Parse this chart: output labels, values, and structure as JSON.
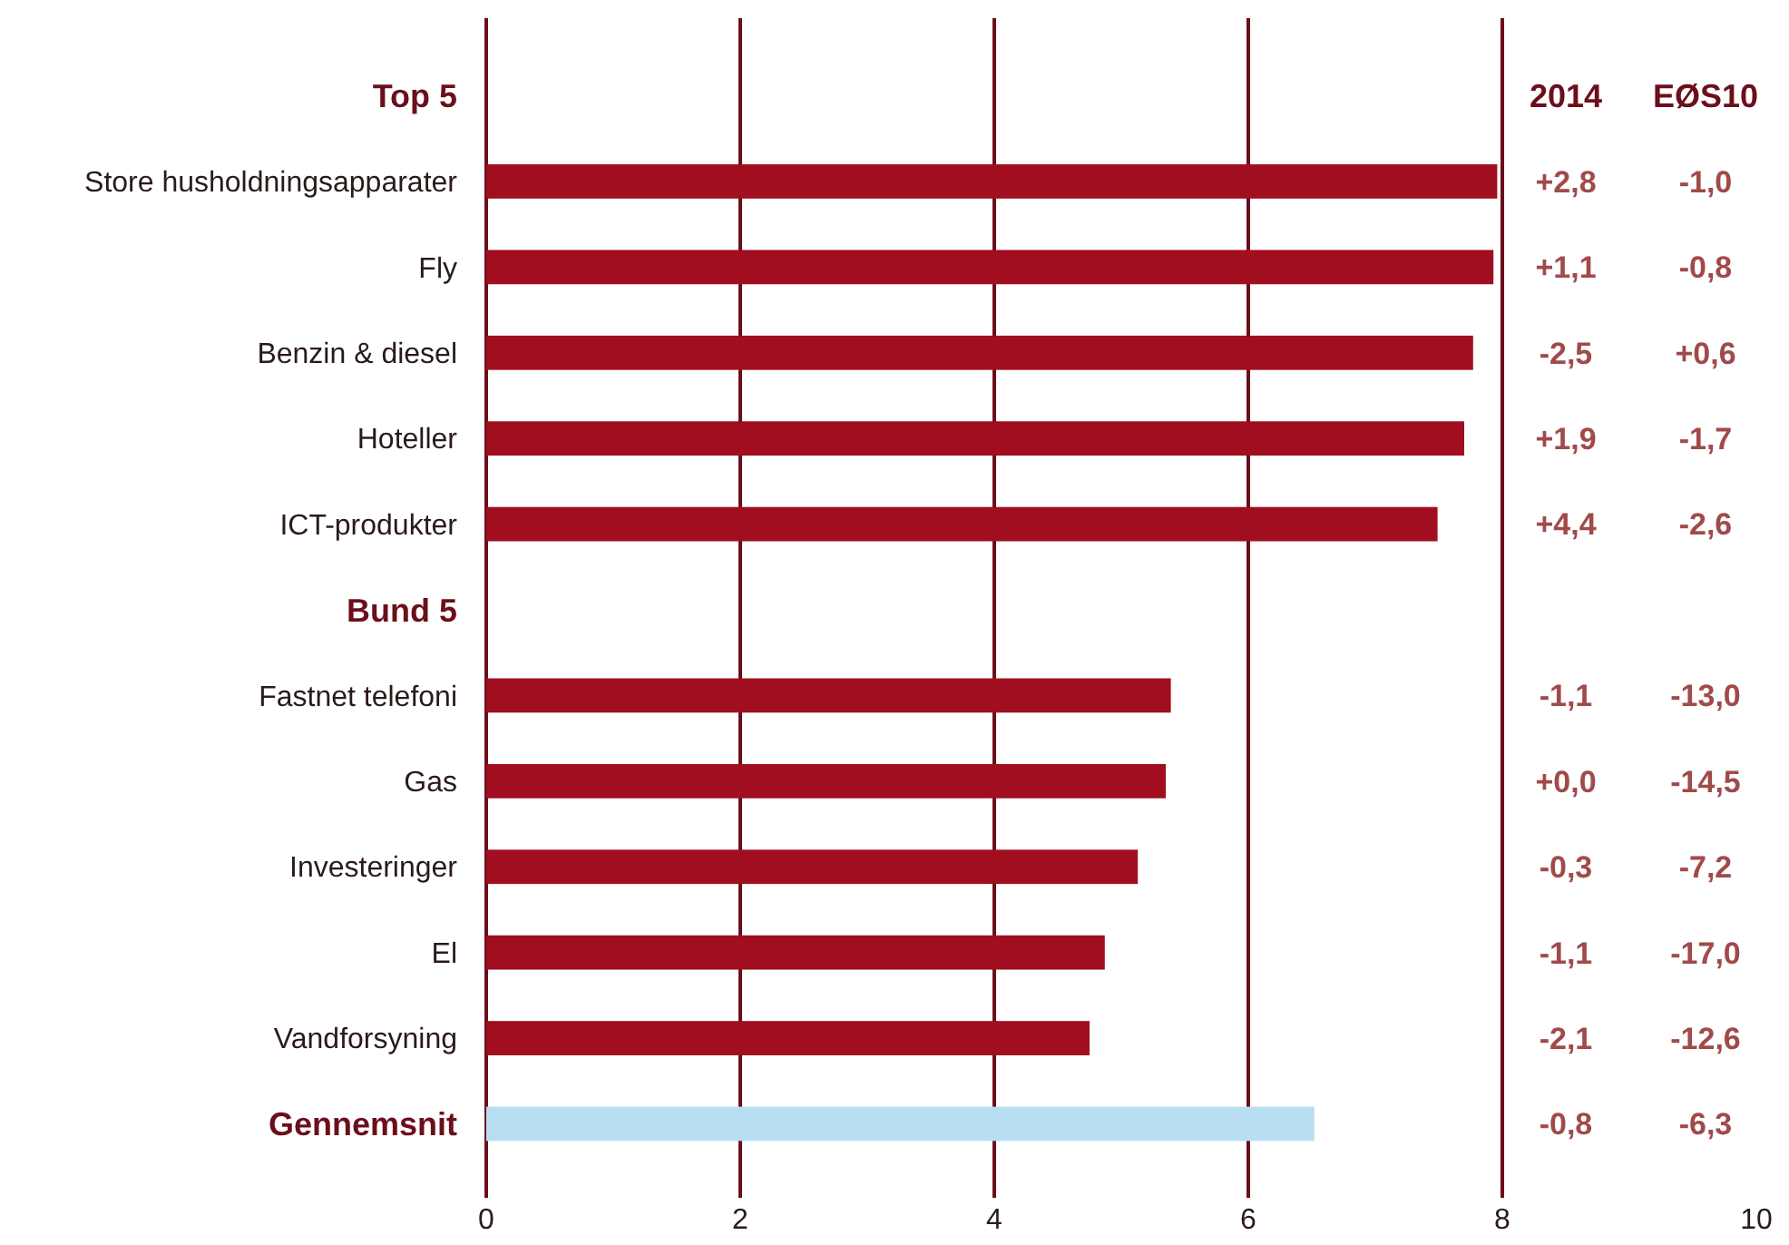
{
  "chart_data": {
    "type": "bar",
    "orientation": "horizontal",
    "categories": [
      "Top 5",
      "Store husholdningsapparater",
      "Fly",
      "Benzin & diesel",
      "Hoteller",
      "ICT-produkter",
      "Bund 5",
      "Fastnet telefoni",
      "Gas",
      "Investeringer",
      "El",
      "Vandforsyning",
      "Gennemsnit"
    ],
    "values": [
      null,
      7.96,
      7.93,
      7.77,
      7.7,
      7.49,
      null,
      5.39,
      5.35,
      5.13,
      4.87,
      4.75,
      6.52
    ],
    "colors": [
      null,
      "#a00e1f",
      "#a00e1f",
      "#a00e1f",
      "#a00e1f",
      "#a00e1f",
      null,
      "#a00e1f",
      "#a00e1f",
      "#a00e1f",
      "#a00e1f",
      "#a00e1f",
      "#b8def2"
    ],
    "xlim": [
      0,
      10
    ],
    "xticks": [
      0,
      2,
      4,
      6,
      8,
      10
    ],
    "grid": "x",
    "annotations": [
      "2014",
      "EØS10",
      "+2,8",
      "-1,0",
      "+1,1",
      "-0,8",
      "-2,5",
      "+0,6",
      "+1,9",
      "-1,7",
      "+4,4",
      "-2,6",
      "-1,1",
      "-13,0",
      "+0,0",
      "-14,5",
      "-0,3",
      "-7,2",
      "-1,1",
      "-17,0",
      "-2,1",
      "-12,6",
      "-0,8",
      "-6,3"
    ]
  }
}
